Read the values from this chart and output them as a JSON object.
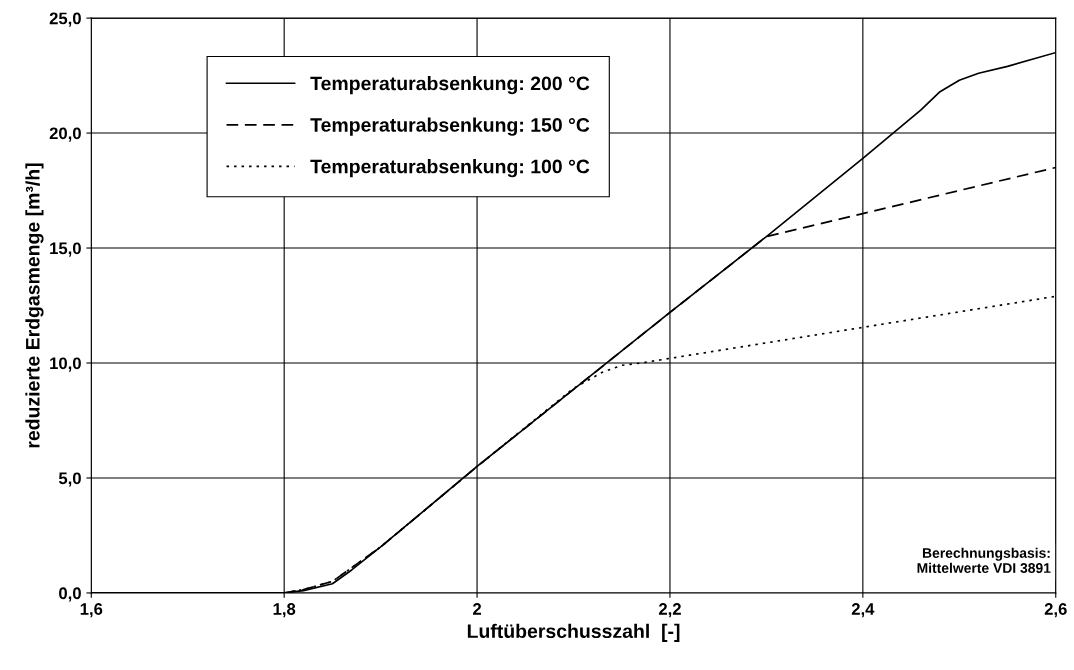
{
  "chart_data": {
    "type": "line",
    "xlabel": "Luftüberschusszahl  [-]",
    "ylabel": "reduzierte Erdgasmenge [m³/h]",
    "xlim": [
      1.6,
      2.6
    ],
    "ylim": [
      0,
      25
    ],
    "xticks": [
      {
        "value": 1.6,
        "label": "1,6"
      },
      {
        "value": 1.8,
        "label": "1,8"
      },
      {
        "value": 2,
        "label": "2"
      },
      {
        "value": 2.2,
        "label": "2,2"
      },
      {
        "value": 2.4,
        "label": "2,4"
      },
      {
        "value": 2.6,
        "label": "2,6"
      }
    ],
    "yticks": [
      {
        "value": 0,
        "label": "0,0"
      },
      {
        "value": 5,
        "label": "5,0"
      },
      {
        "value": 10,
        "label": "10,0"
      },
      {
        "value": 15,
        "label": "15,0"
      },
      {
        "value": 20,
        "label": "20,0"
      },
      {
        "value": 25,
        "label": "25,0"
      }
    ],
    "grid": true,
    "legend": "top left",
    "marker": "none",
    "series": [
      {
        "name": "Temperaturabsenkung: 200 °C",
        "color": "#000000",
        "line_style": "solid",
        "x": [
          1.6,
          1.8,
          1.82,
          1.85,
          1.87,
          1.9,
          2.0,
          2.2,
          2.3,
          2.4,
          2.46,
          2.48,
          2.5,
          2.52,
          2.55,
          2.6
        ],
        "values": [
          0,
          0,
          0.1,
          0.4,
          1.0,
          2.0,
          5.5,
          12.2,
          15.5,
          18.9,
          21.0,
          21.8,
          22.3,
          22.6,
          22.9,
          23.5
        ]
      },
      {
        "name": "Temperaturabsenkung: 150 °C",
        "color": "#000000",
        "line_style": "dashed",
        "x": [
          1.8,
          1.82,
          1.85,
          1.87,
          1.9,
          2.0,
          2.2,
          2.3,
          2.6
        ],
        "values": [
          0,
          0.15,
          0.5,
          1.1,
          2.0,
          5.5,
          12.2,
          15.5,
          18.5
        ]
      },
      {
        "name": "Temperaturabsenkung: 100 °C",
        "color": "#000000",
        "line_style": "dotted",
        "x": [
          1.8,
          1.82,
          1.85,
          1.87,
          1.9,
          2.0,
          2.1,
          2.13,
          2.15,
          2.17,
          2.6
        ],
        "values": [
          0,
          0.15,
          0.5,
          1.1,
          2.0,
          5.5,
          8.9,
          9.6,
          9.9,
          10.0,
          12.9
        ]
      }
    ],
    "annotations": [
      "Berechnungsbasis:\nMittelwerte VDI 3891"
    ]
  }
}
